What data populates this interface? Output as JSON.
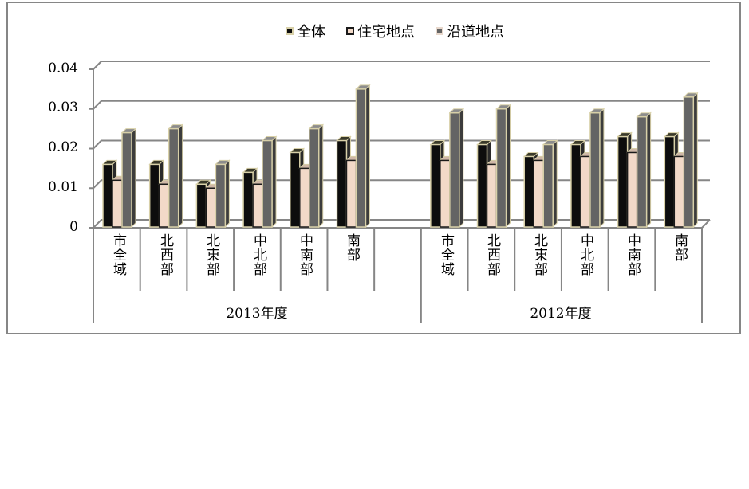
{
  "chart_data": {
    "type": "bar",
    "subtype": "3d-clustered-column",
    "title": "",
    "xlabel": "",
    "ylabel": "",
    "ylim": [
      0,
      0.04
    ],
    "yticks": [
      "0",
      "0.01",
      "0.02",
      "0.03",
      "0.04"
    ],
    "grid": true,
    "legend_position": "top",
    "groups": [
      {
        "label": "2013年度",
        "categories": [
          "市全域",
          "北西部",
          "北東部",
          "中北部",
          "中南部",
          "南部"
        ],
        "series": [
          {
            "name": "全体",
            "values": [
              0.016,
              0.016,
              0.011,
              0.014,
              0.019,
              0.022
            ]
          },
          {
            "name": "住宅地点",
            "values": [
              0.012,
              0.011,
              0.01,
              0.011,
              0.015,
              0.017
            ]
          },
          {
            "name": "沿道地点",
            "values": [
              0.024,
              0.025,
              0.016,
              0.022,
              0.025,
              0.035
            ]
          }
        ]
      },
      {
        "label": "2012年度",
        "categories": [
          "市全域",
          "北西部",
          "北東部",
          "中北部",
          "中南部",
          "南部"
        ],
        "series": [
          {
            "name": "全体",
            "values": [
              0.021,
              0.021,
              0.018,
              0.021,
              0.023,
              0.023
            ]
          },
          {
            "name": "住宅地点",
            "values": [
              0.017,
              0.016,
              0.017,
              0.018,
              0.019,
              0.018
            ]
          },
          {
            "name": "沿道地点",
            "values": [
              0.029,
              0.03,
              0.021,
              0.029,
              0.028,
              0.033
            ]
          }
        ]
      }
    ]
  },
  "legend": [
    {
      "label": "全体",
      "color": "#0d0d0d"
    },
    {
      "label": "住宅地点",
      "color": "#f2d9c8"
    },
    {
      "label": "沿道地点",
      "color": "#646464"
    }
  ],
  "colors": {
    "bar_outline": "#d8d0a8",
    "grid": "#868686",
    "frame": "#868686"
  }
}
